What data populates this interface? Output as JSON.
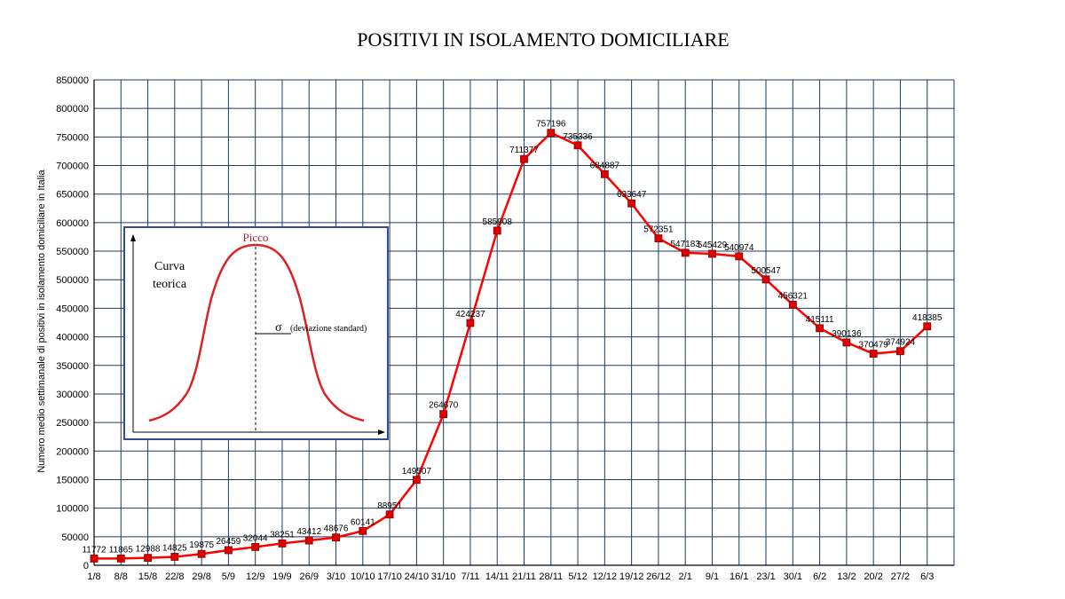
{
  "chart_data": {
    "type": "line",
    "title": "POSITIVI IN ISOLAMENTO DOMICILIARE",
    "ylabel": "Numero medio settimanale di positivi in isolamento domiciliare in Italia",
    "xlabel": "",
    "ylim": [
      0,
      850000
    ],
    "ytick_step": 50000,
    "grid": true,
    "colors": {
      "line": "#ff0000",
      "marker_fill": "#e00000",
      "marker_edge": "#800000",
      "grid": "#1f3a5f",
      "inset_border": "#334c99",
      "curve": "#dd2222"
    },
    "categories": [
      "1/8",
      "8/8",
      "15/8",
      "22/8",
      "29/8",
      "5/9",
      "12/9",
      "19/9",
      "26/9",
      "3/10",
      "10/10",
      "17/10",
      "24/10",
      "31/10",
      "7/11",
      "14/11",
      "21/11",
      "28/11",
      "5/12",
      "12/12",
      "19/12",
      "26/12",
      "2/1",
      "9/1",
      "16/1",
      "23/1",
      "30/1",
      "6/2",
      "13/2",
      "20/2",
      "27/2",
      "6/3"
    ],
    "series": [
      {
        "values": [
          11772,
          11865,
          12988,
          14825,
          19875,
          26459,
          32044,
          38251,
          43412,
          48676,
          60141,
          88951,
          149507,
          264670,
          424237,
          585908,
          711377,
          757196,
          735336,
          684887,
          633647,
          572351,
          547183,
          545429,
          540974,
          500547,
          456321,
          415111,
          390136,
          370479,
          374924,
          418385
        ],
        "labels": [
          "11772",
          "11865",
          "12988",
          "14825",
          "19875",
          "26459",
          "32044",
          "38251",
          "43412",
          "48676",
          "60141",
          "88951",
          "149507",
          "264670",
          "424237",
          "585908",
          "711377",
          "757196",
          "735336",
          "684887",
          "633647",
          "572351",
          "547183",
          "545429",
          "540974",
          "500547",
          "456321",
          "415111",
          "390136",
          "370479",
          "374924",
          "418385"
        ]
      }
    ],
    "inset": {
      "peak_label": "Picco",
      "curve_label_line1": "Curva",
      "curve_label_line2": "teorica",
      "sigma_symbol": "σ",
      "sigma_text": "(deviazione standard)"
    }
  }
}
